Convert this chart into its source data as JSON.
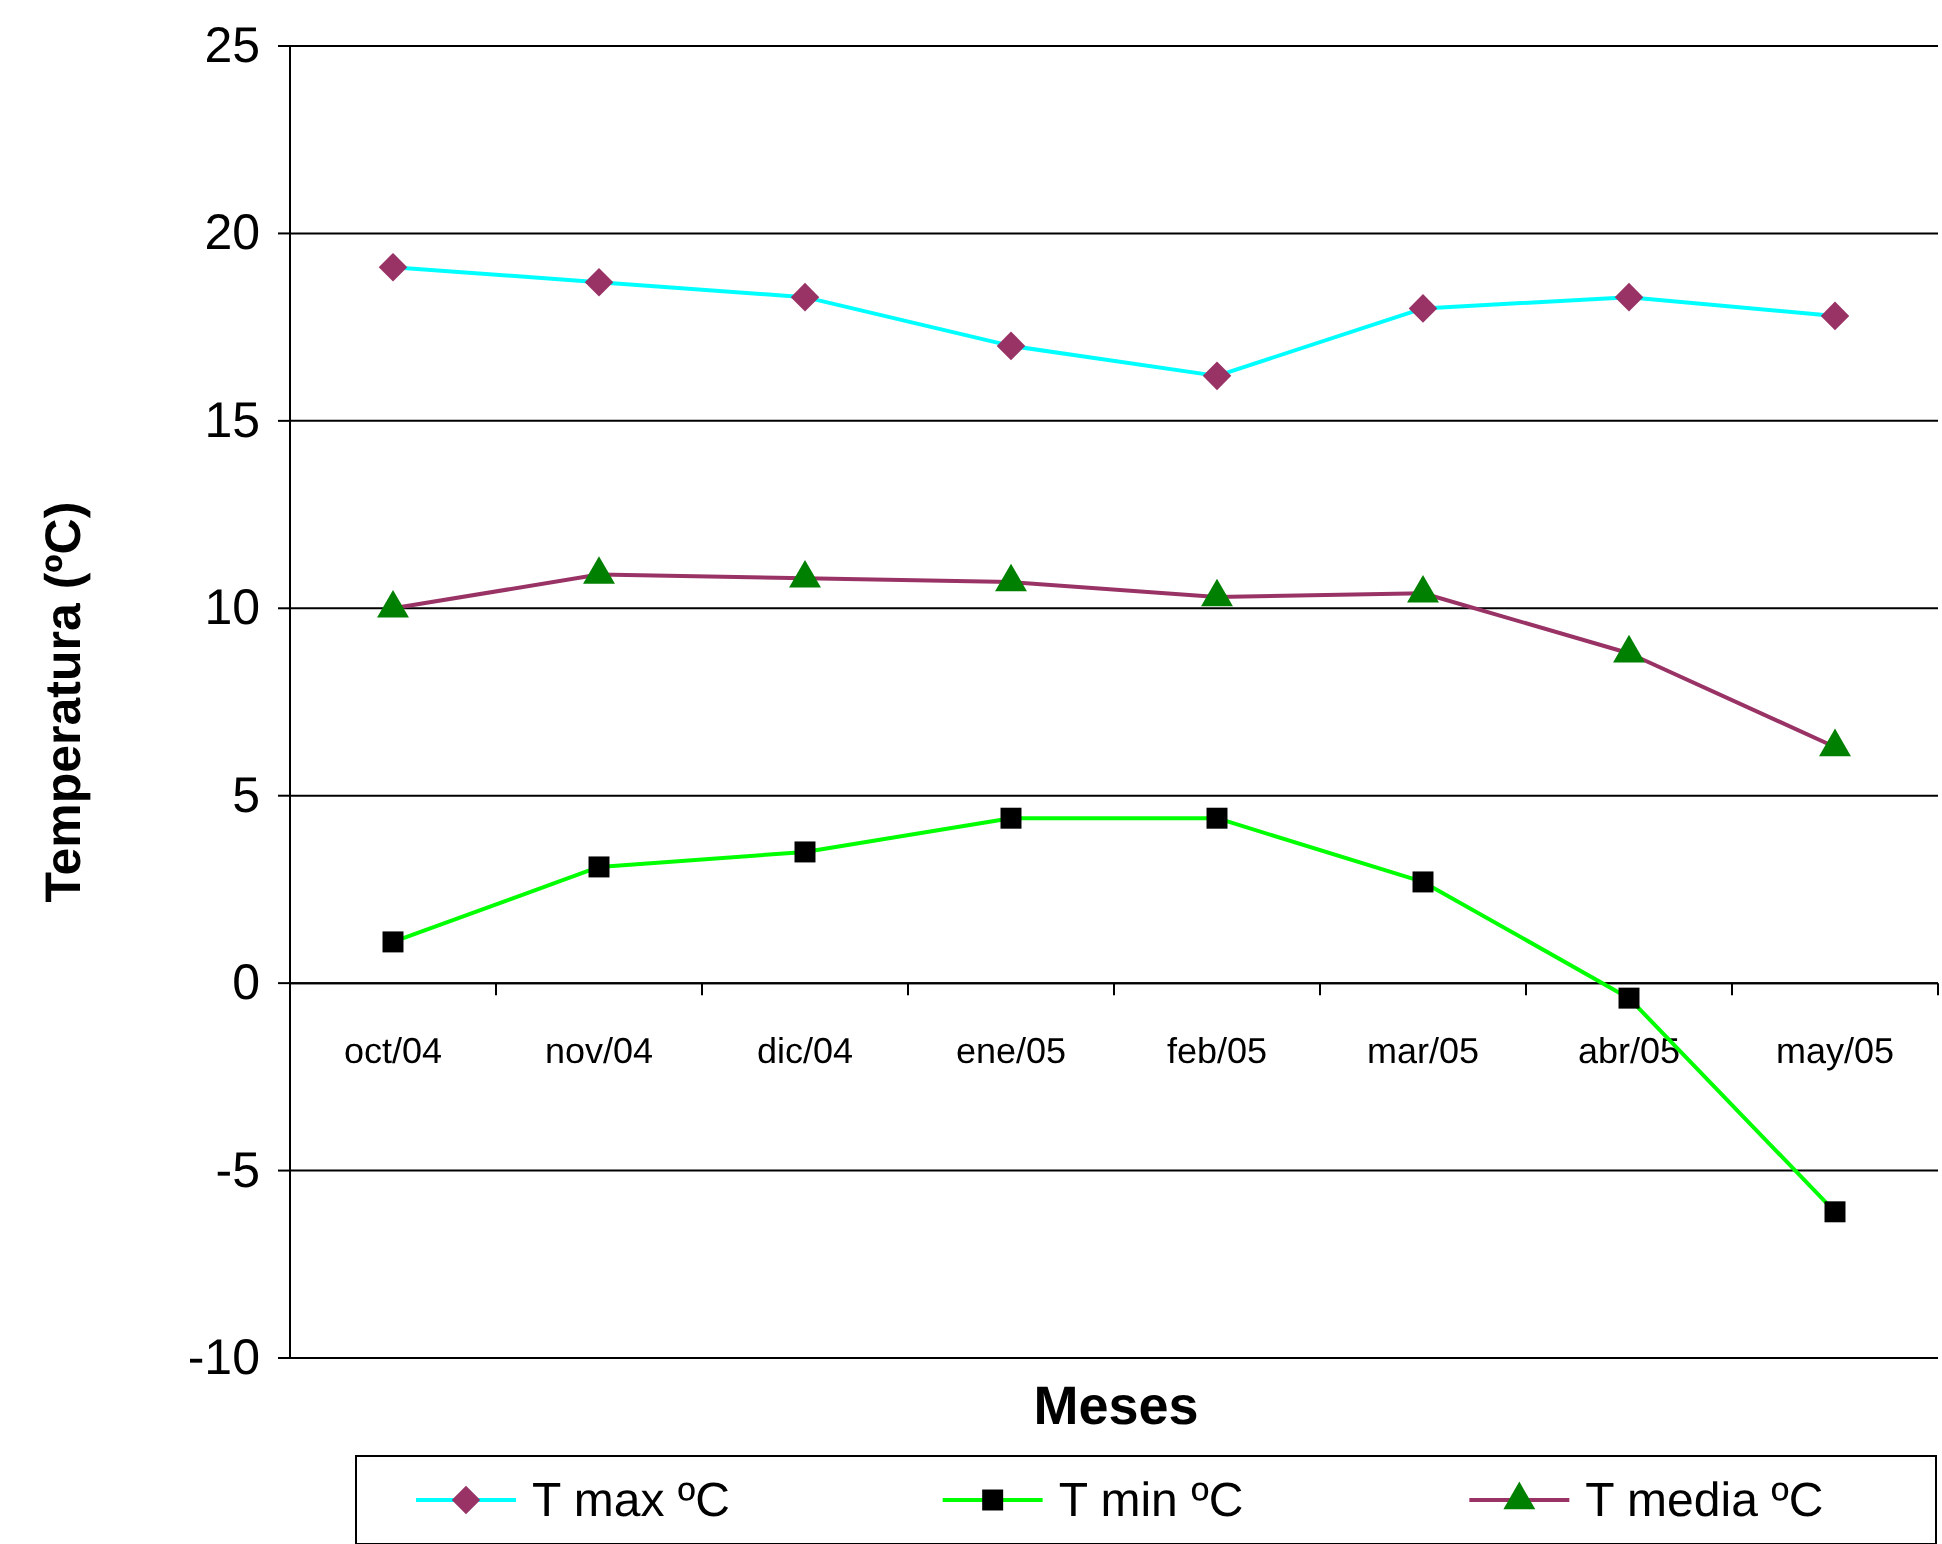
{
  "chart_data": {
    "type": "line",
    "xlabel": "Meses",
    "ylabel": "Temperatura (ºC)",
    "categories": [
      "oct/04",
      "nov/04",
      "dic/04",
      "ene/05",
      "feb/05",
      "mar/05",
      "abr/05",
      "may/05"
    ],
    "series": [
      {
        "name": "T max ºC",
        "color": "#00ffff",
        "marker": "diamond",
        "colors": [
          "#993366",
          "#993366",
          "#993366",
          "#993366",
          "#993366",
          "#993366",
          "#993366",
          "#993366"
        ],
        "values": [
          19.1,
          18.7,
          18.3,
          17.0,
          16.2,
          18.0,
          18.3,
          17.8
        ]
      },
      {
        "name": "T min ºC",
        "color": "#00ff00",
        "marker": "square",
        "colors": [
          "#000000",
          "#000000",
          "#000000",
          "#000000",
          "#000000",
          "#000000",
          "#000000",
          "#000000"
        ],
        "values": [
          1.1,
          3.1,
          3.5,
          4.4,
          4.4,
          2.7,
          -0.4,
          -6.1
        ]
      },
      {
        "name": "T media ºC",
        "color": "#993366",
        "marker": "triangle",
        "colors": [
          "#008000",
          "#008000",
          "#008000",
          "#008000",
          "#008000",
          "#008000",
          "#008000",
          "#008000"
        ],
        "values": [
          10.0,
          10.9,
          10.8,
          10.7,
          10.3,
          10.4,
          8.8,
          6.3
        ]
      }
    ],
    "ylim": [
      -10,
      25
    ],
    "yticks": [
      -10,
      -5,
      0,
      5,
      10,
      15,
      20,
      25
    ],
    "grid": "y",
    "legend": "bottom",
    "line_style": "solid"
  }
}
